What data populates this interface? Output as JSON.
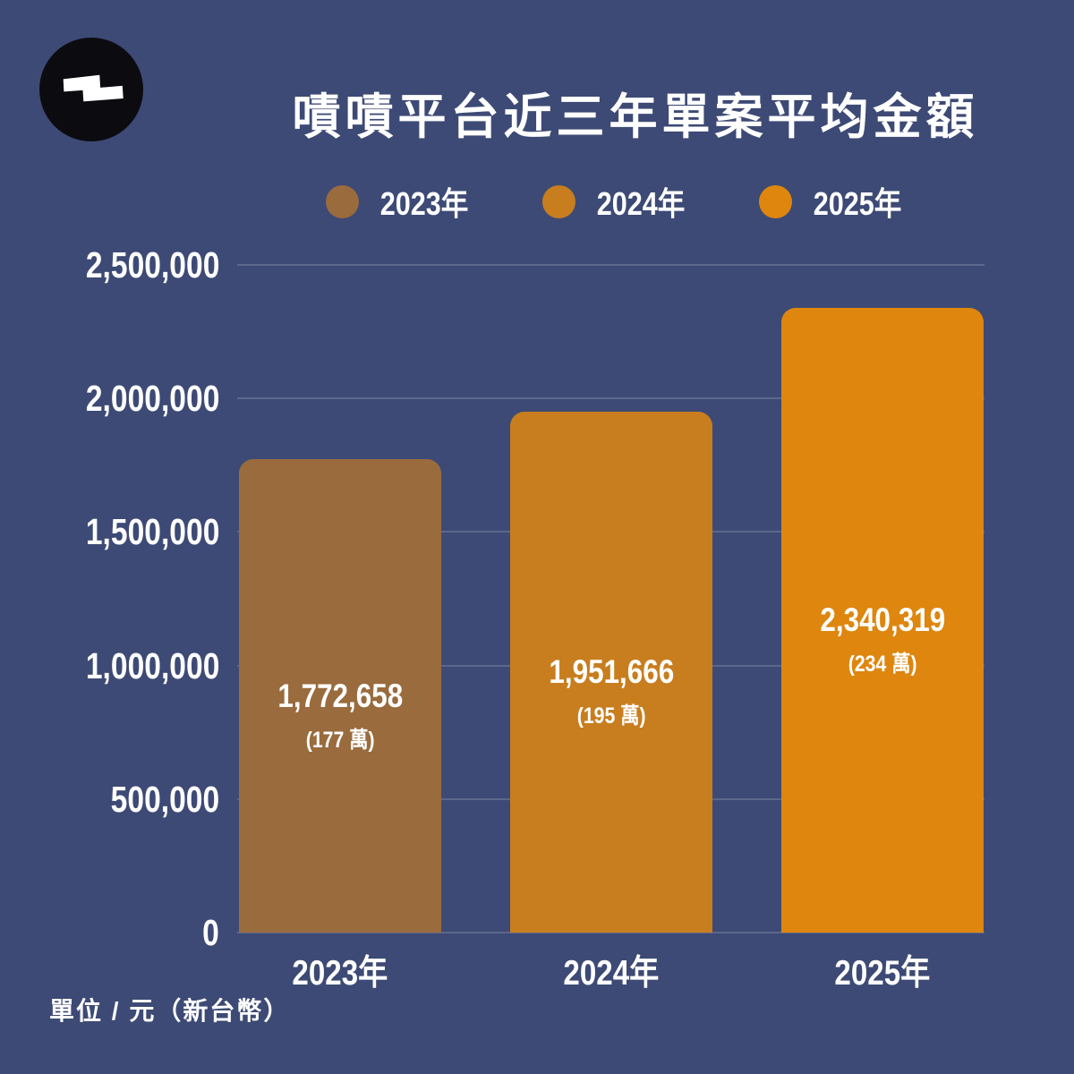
{
  "page": {
    "background_color": "#3D4A75",
    "text_color": "#FFFFFF",
    "gridline_color": "rgba(255,255,255,0.16)",
    "logo_color": "#0C0C10"
  },
  "title": "嘖嘖平台近三年單案平均金額",
  "footer": "單位 / 元（新台幣）",
  "chart_data": {
    "type": "bar",
    "title": "嘖嘖平台近三年單案平均金額",
    "categories": [
      "2023年",
      "2024年",
      "2025年"
    ],
    "values": [
      1772658,
      1951666,
      2340319
    ],
    "value_labels": [
      "1,772,658",
      "1,951,666",
      "2,340,319"
    ],
    "sub_labels": [
      "(177 萬)",
      "(195 萬)",
      "(234 萬)"
    ],
    "bar_colors": [
      "#996B3D",
      "#C87E1E",
      "#DE860E"
    ],
    "legend": [
      {
        "label": "2023年",
        "color": "#996B3D"
      },
      {
        "label": "2024年",
        "color": "#C87E1E"
      },
      {
        "label": "2025年",
        "color": "#DE860E"
      }
    ],
    "legend_position": "top",
    "grid": true,
    "ylim": [
      0,
      2500000
    ],
    "y_ticks": [
      {
        "label": "0",
        "value": 0
      },
      {
        "label": "500,000",
        "value": 500000
      },
      {
        "label": "1,000,000",
        "value": 1000000
      },
      {
        "label": "1,500,000",
        "value": 1500000
      },
      {
        "label": "2,000,000",
        "value": 2000000
      },
      {
        "label": "2,500,000",
        "value": 2500000
      }
    ],
    "xlabel": "",
    "ylabel": "單位 / 元（新台幣）"
  }
}
